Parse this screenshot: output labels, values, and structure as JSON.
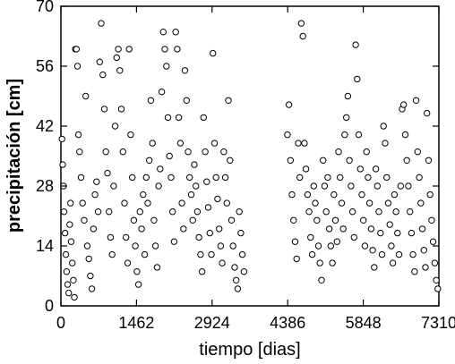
{
  "chart_data": {
    "type": "scatter",
    "title": "",
    "xlabel": "tiempo [dias]",
    "ylabel": "precipitación [cm]",
    "xlim": [
      0,
      7310
    ],
    "ylim": [
      0,
      70
    ],
    "xticks": [
      "0",
      "1462",
      "2924",
      "4386",
      "5848",
      "7310"
    ],
    "yticks": [
      "0",
      "14",
      "28",
      "42",
      "56",
      "70"
    ],
    "xtick_values": [
      0,
      1462,
      2924,
      4386,
      5848,
      7310
    ],
    "ytick_values": [
      0,
      14,
      28,
      42,
      56,
      70
    ],
    "grid": false,
    "marker": "open-circle",
    "series": [
      {
        "points": [
          [
            20,
            39
          ],
          [
            35,
            33
          ],
          [
            50,
            28
          ],
          [
            60,
            22
          ],
          [
            80,
            17
          ],
          [
            95,
            12
          ],
          [
            110,
            8
          ],
          [
            130,
            5
          ],
          [
            150,
            3
          ],
          [
            170,
            19
          ],
          [
            185,
            24
          ],
          [
            200,
            15
          ],
          [
            220,
            10
          ],
          [
            240,
            6
          ],
          [
            260,
            2
          ],
          [
            280,
            60
          ],
          [
            300,
            60
          ],
          [
            320,
            56
          ],
          [
            340,
            40
          ],
          [
            360,
            36
          ],
          [
            390,
            30
          ],
          [
            420,
            24
          ],
          [
            450,
            20
          ],
          [
            480,
            49
          ],
          [
            510,
            14
          ],
          [
            540,
            11
          ],
          [
            570,
            7
          ],
          [
            600,
            4
          ],
          [
            630,
            18
          ],
          [
            660,
            26
          ],
          [
            690,
            29
          ],
          [
            720,
            22
          ],
          [
            750,
            57
          ],
          [
            780,
            66
          ],
          [
            810,
            54
          ],
          [
            840,
            46
          ],
          [
            870,
            36
          ],
          [
            900,
            31
          ],
          [
            930,
            22
          ],
          [
            960,
            16
          ],
          [
            990,
            12
          ],
          [
            1020,
            28
          ],
          [
            1050,
            42
          ],
          [
            1080,
            58
          ],
          [
            1110,
            60
          ],
          [
            1140,
            55
          ],
          [
            1170,
            46
          ],
          [
            1200,
            36
          ],
          [
            1230,
            24
          ],
          [
            1260,
            16
          ],
          [
            1290,
            10
          ],
          [
            1320,
            60
          ],
          [
            1350,
            40
          ],
          [
            1380,
            30
          ],
          [
            1410,
            20
          ],
          [
            1440,
            14
          ],
          [
            1470,
            8
          ],
          [
            1500,
            5
          ],
          [
            1530,
            22
          ],
          [
            1560,
            18
          ],
          [
            1590,
            26
          ],
          [
            1620,
            12
          ],
          [
            1650,
            30
          ],
          [
            1680,
            24
          ],
          [
            1710,
            34
          ],
          [
            1740,
            48
          ],
          [
            1770,
            38
          ],
          [
            1800,
            20
          ],
          [
            1830,
            14
          ],
          [
            1860,
            9
          ],
          [
            1890,
            28
          ],
          [
            1920,
            32
          ],
          [
            1950,
            50
          ],
          [
            1980,
            64
          ],
          [
            2010,
            60
          ],
          [
            2040,
            56
          ],
          [
            2070,
            44
          ],
          [
            2100,
            35
          ],
          [
            2130,
            30
          ],
          [
            2160,
            22
          ],
          [
            2190,
            15
          ],
          [
            2220,
            64
          ],
          [
            2250,
            60
          ],
          [
            2280,
            44
          ],
          [
            2310,
            38
          ],
          [
            2340,
            24
          ],
          [
            2370,
            18
          ],
          [
            2400,
            55
          ],
          [
            2430,
            48
          ],
          [
            2460,
            36
          ],
          [
            2490,
            30
          ],
          [
            2520,
            26
          ],
          [
            2550,
            20
          ],
          [
            2580,
            33
          ],
          [
            2610,
            28
          ],
          [
            2640,
            22
          ],
          [
            2670,
            16
          ],
          [
            2700,
            12
          ],
          [
            2730,
            8
          ],
          [
            2760,
            44
          ],
          [
            2790,
            36
          ],
          [
            2820,
            29
          ],
          [
            2850,
            23
          ],
          [
            2880,
            17
          ],
          [
            2910,
            12
          ],
          [
            2940,
            59
          ],
          [
            2970,
            38
          ],
          [
            3000,
            30
          ],
          [
            3030,
            25
          ],
          [
            3060,
            18
          ],
          [
            3090,
            14
          ],
          [
            3120,
            10
          ],
          [
            3150,
            36
          ],
          [
            3180,
            30
          ],
          [
            3210,
            24
          ],
          [
            3240,
            48
          ],
          [
            3270,
            34
          ],
          [
            3300,
            20
          ],
          [
            3330,
            14
          ],
          [
            3360,
            9
          ],
          [
            3390,
            6
          ],
          [
            3420,
            4
          ],
          [
            3450,
            22
          ],
          [
            3480,
            17
          ],
          [
            3510,
            12
          ],
          [
            3540,
            8
          ],
          [
            4380,
            40
          ],
          [
            4410,
            47
          ],
          [
            4440,
            34
          ],
          [
            4470,
            26
          ],
          [
            4500,
            20
          ],
          [
            4530,
            15
          ],
          [
            4560,
            11
          ],
          [
            4590,
            38
          ],
          [
            4620,
            30
          ],
          [
            4650,
            66
          ],
          [
            4680,
            63
          ],
          [
            4710,
            38
          ],
          [
            4740,
            32
          ],
          [
            4770,
            26
          ],
          [
            4800,
            22
          ],
          [
            4830,
            16
          ],
          [
            4860,
            12
          ],
          [
            4890,
            28
          ],
          [
            4920,
            24
          ],
          [
            4950,
            20
          ],
          [
            4980,
            14
          ],
          [
            5010,
            10
          ],
          [
            5040,
            6
          ],
          [
            5070,
            34
          ],
          [
            5100,
            28
          ],
          [
            5130,
            22
          ],
          [
            5160,
            30
          ],
          [
            5190,
            18
          ],
          [
            5220,
            14
          ],
          [
            5250,
            10
          ],
          [
            5280,
            26
          ],
          [
            5310,
            20
          ],
          [
            5340,
            15
          ],
          [
            5370,
            36
          ],
          [
            5400,
            30
          ],
          [
            5430,
            24
          ],
          [
            5460,
            18
          ],
          [
            5490,
            40
          ],
          [
            5520,
            44
          ],
          [
            5550,
            49
          ],
          [
            5580,
            34
          ],
          [
            5610,
            28
          ],
          [
            5640,
            22
          ],
          [
            5670,
            16
          ],
          [
            5700,
            61
          ],
          [
            5730,
            53
          ],
          [
            5760,
            40
          ],
          [
            5790,
            32
          ],
          [
            5820,
            26
          ],
          [
            5850,
            20
          ],
          [
            5880,
            14
          ],
          [
            5910,
            36
          ],
          [
            5940,
            30
          ],
          [
            5970,
            24
          ],
          [
            6000,
            18
          ],
          [
            6030,
            13
          ],
          [
            6060,
            9
          ],
          [
            6090,
            32
          ],
          [
            6120,
            28
          ],
          [
            6150,
            22
          ],
          [
            6180,
            17
          ],
          [
            6210,
            12
          ],
          [
            6240,
            42
          ],
          [
            6270,
            38
          ],
          [
            6300,
            30
          ],
          [
            6330,
            24
          ],
          [
            6360,
            19
          ],
          [
            6390,
            14
          ],
          [
            6420,
            10
          ],
          [
            6450,
            26
          ],
          [
            6480,
            22
          ],
          [
            6510,
            17
          ],
          [
            6540,
            12
          ],
          [
            6570,
            28
          ],
          [
            6600,
            46
          ],
          [
            6630,
            47
          ],
          [
            6660,
            40
          ],
          [
            6690,
            34
          ],
          [
            6720,
            28
          ],
          [
            6750,
            22
          ],
          [
            6780,
            17
          ],
          [
            6810,
            12
          ],
          [
            6840,
            8
          ],
          [
            6870,
            48
          ],
          [
            6900,
            36
          ],
          [
            6930,
            30
          ],
          [
            6960,
            24
          ],
          [
            6990,
            18
          ],
          [
            7020,
            13
          ],
          [
            7050,
            9
          ],
          [
            7080,
            45
          ],
          [
            7110,
            34
          ],
          [
            7140,
            26
          ],
          [
            7170,
            20
          ],
          [
            7200,
            15
          ],
          [
            7230,
            10
          ],
          [
            7260,
            6
          ],
          [
            7290,
            4
          ]
        ]
      }
    ]
  }
}
